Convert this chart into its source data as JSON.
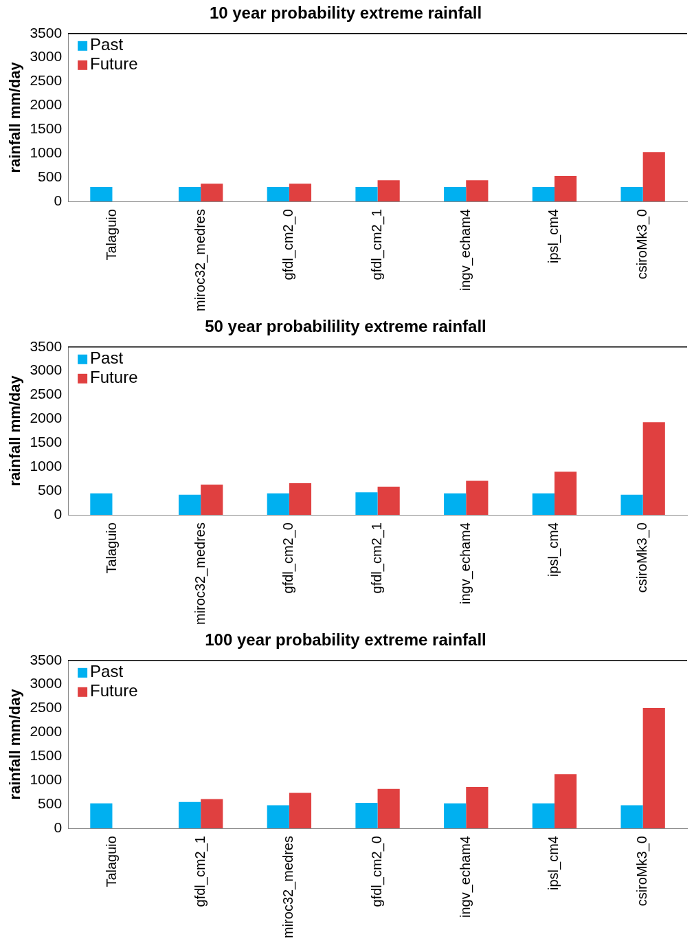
{
  "chart_data": [
    {
      "type": "bar",
      "title": "10 year probability extreme rainfall",
      "ylabel": "rainfall mm/day",
      "categories": [
        "Talaguio",
        "miroc32_medres",
        "gfdl_cm2_0",
        "gfdl_cm2_1",
        "ingv_echam4",
        "ipsl_cm4",
        "csiroMk3_0"
      ],
      "series": [
        {
          "name": "Past",
          "color": "#00b0f0",
          "values": [
            300,
            300,
            300,
            300,
            300,
            300,
            300
          ]
        },
        {
          "name": "Future",
          "color": "#e04040",
          "values": [
            null,
            370,
            370,
            440,
            440,
            530,
            1030
          ]
        }
      ],
      "ylim": [
        0,
        3500
      ],
      "yticks": [
        0,
        500,
        1000,
        1500,
        2000,
        2500,
        3000,
        3500
      ],
      "legend": "top left"
    },
    {
      "type": "bar",
      "title": "50 year probabilility extreme rainfall",
      "ylabel": "rainfall mm/day",
      "categories": [
        "Talaguio",
        "miroc32_medres",
        "gfdl_cm2_0",
        "gfdl_cm2_1",
        "ingv_echam4",
        "ipsl_cm4",
        "csiroMk3_0"
      ],
      "series": [
        {
          "name": "Past",
          "color": "#00b0f0",
          "values": [
            450,
            420,
            450,
            470,
            450,
            450,
            420
          ]
        },
        {
          "name": "Future",
          "color": "#e04040",
          "values": [
            null,
            630,
            660,
            590,
            710,
            900,
            1930
          ]
        }
      ],
      "ylim": [
        0,
        3500
      ],
      "yticks": [
        0,
        500,
        1000,
        1500,
        2000,
        2500,
        3000,
        3500
      ],
      "legend": "top left"
    },
    {
      "type": "bar",
      "title": "100 year probability extreme rainfall",
      "ylabel": "rainfall mm/day",
      "categories": [
        "Talaguio",
        "gfdl_cm2_1",
        "miroc32_medres",
        "gfdl_cm2_0",
        "ingv_echam4",
        "ipsl_cm4",
        "csiroMk3_0"
      ],
      "series": [
        {
          "name": "Past",
          "color": "#00b0f0",
          "values": [
            520,
            550,
            480,
            530,
            520,
            520,
            480
          ]
        },
        {
          "name": "Future",
          "color": "#e04040",
          "values": [
            null,
            610,
            740,
            820,
            860,
            1130,
            2510
          ]
        }
      ],
      "ylim": [
        0,
        3500
      ],
      "yticks": [
        0,
        500,
        1000,
        1500,
        2000,
        2500,
        3000,
        3500
      ],
      "legend": "top left"
    }
  ]
}
